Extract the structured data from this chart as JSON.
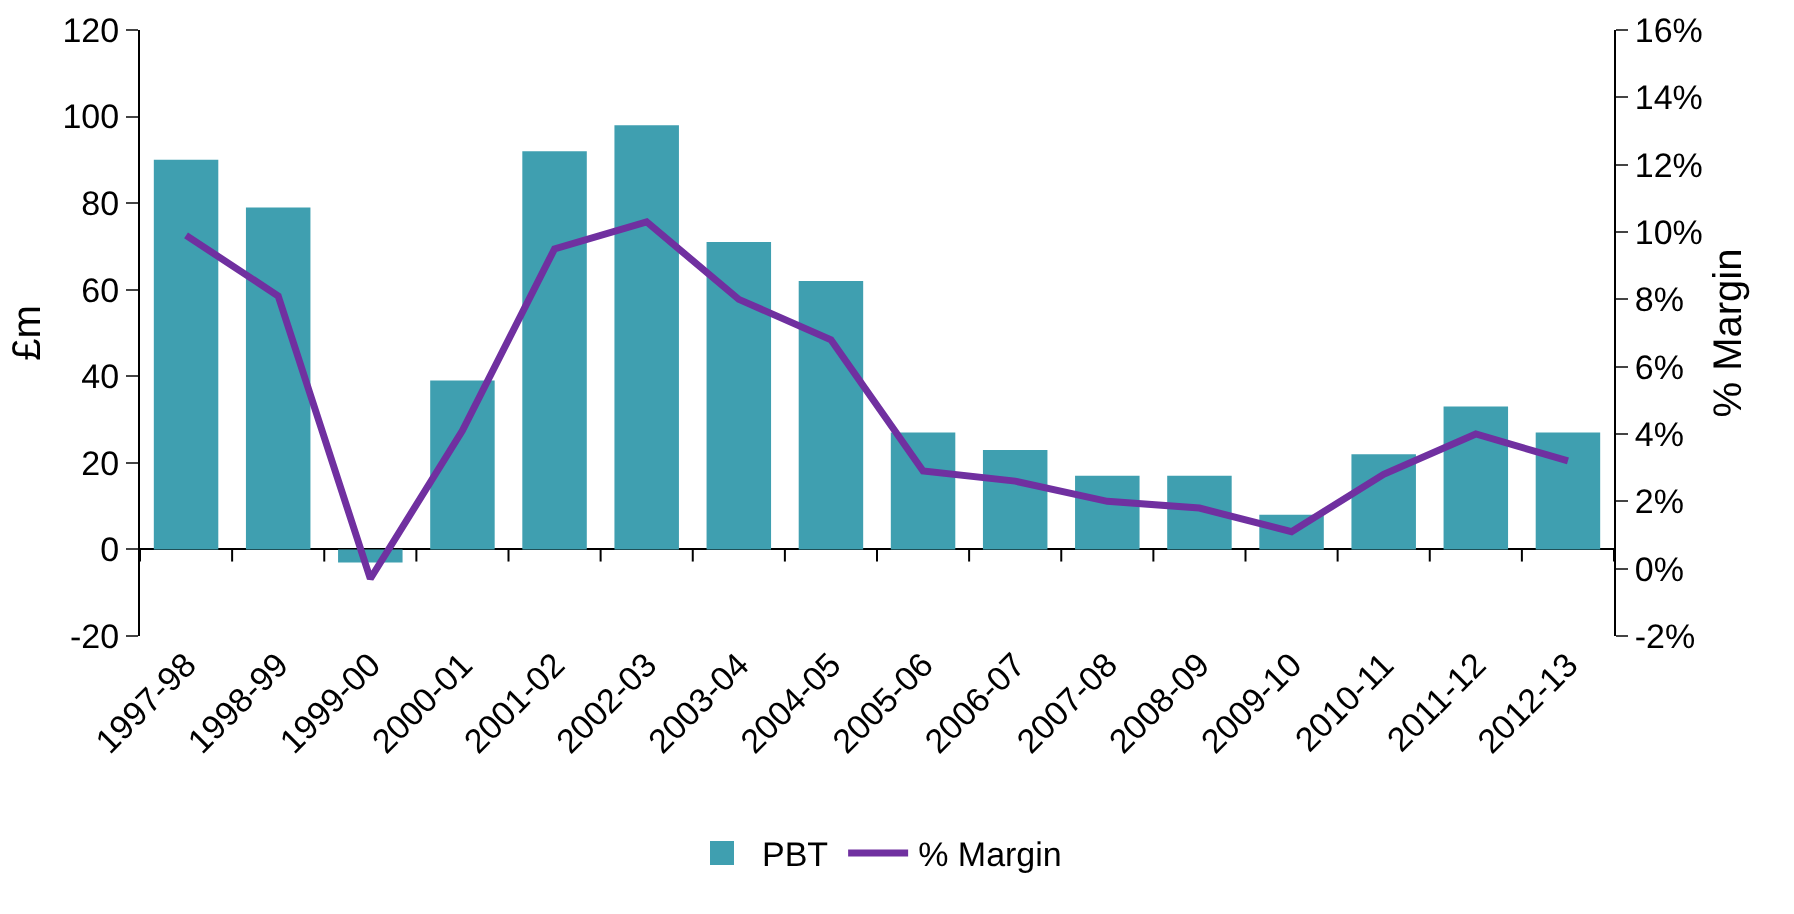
{
  "chart_data": {
    "type": "bar",
    "ylabel": "£m",
    "y2label": "% Margin",
    "categories": [
      "1997-98",
      "1998-99",
      "1999-00",
      "2000-01",
      "2001-02",
      "2002-03",
      "2003-04",
      "2004-05",
      "2005-06",
      "2006-07",
      "2007-08",
      "2008-09",
      "2009-10",
      "2010-11",
      "2011-12",
      "2012-13"
    ],
    "series": [
      {
        "name": "PBT",
        "color": "#3f9fb0",
        "values": [
          90,
          79,
          -3,
          39,
          92,
          98,
          71,
          62,
          27,
          23,
          17,
          17,
          8,
          22,
          33,
          27
        ]
      },
      {
        "name": "% Margin",
        "type": "line",
        "axis": "y2",
        "color": "#7030a0",
        "values": [
          9.9,
          8.1,
          -0.3,
          4.1,
          9.5,
          10.3,
          8.0,
          6.8,
          2.9,
          2.6,
          2.0,
          1.8,
          1.1,
          2.8,
          4.0,
          3.2
        ]
      }
    ],
    "ylim": [
      -20,
      120
    ],
    "yticks": [
      -20,
      0,
      20,
      40,
      60,
      80,
      100,
      120
    ],
    "y2lim": [
      -2,
      16
    ],
    "y2ticks": [
      {
        "value": -2,
        "label": "-2%"
      },
      {
        "value": 0,
        "label": "0%"
      },
      {
        "value": 2,
        "label": "2%"
      },
      {
        "value": 4,
        "label": "4%"
      },
      {
        "value": 6,
        "label": "6%"
      },
      {
        "value": 8,
        "label": "8%"
      },
      {
        "value": 10,
        "label": "10%"
      },
      {
        "value": 12,
        "label": "12%"
      },
      {
        "value": 14,
        "label": "14%"
      },
      {
        "value": 16,
        "label": "16%"
      }
    ],
    "legend": "bottom",
    "marker": "none",
    "line_style": "solid"
  }
}
